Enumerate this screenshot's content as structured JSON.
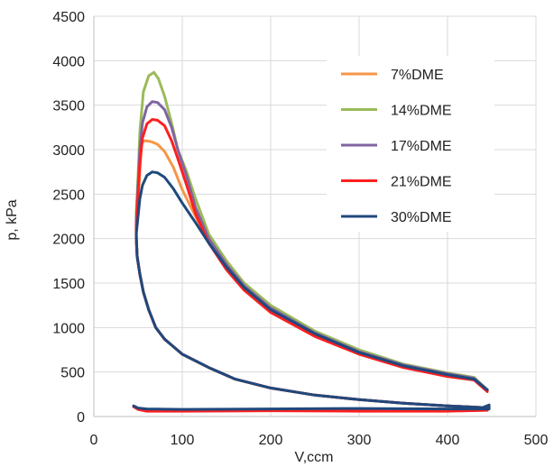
{
  "chart_data": {
    "type": "line",
    "xlabel": "V,ccm",
    "ylabel": "p, kPa",
    "xlim": [
      0,
      500
    ],
    "ylim": [
      0,
      4500
    ],
    "x_ticks": [
      0,
      100,
      200,
      300,
      400,
      500
    ],
    "y_ticks": [
      0,
      500,
      1000,
      1500,
      2000,
      2500,
      3000,
      3500,
      4000,
      4500
    ],
    "grid": true,
    "legend_position": "top-right",
    "series": [
      {
        "name": "7%DME",
        "color": "#f79646",
        "points": [
          [
            445,
            300
          ],
          [
            430,
            420
          ],
          [
            400,
            470
          ],
          [
            350,
            570
          ],
          [
            300,
            720
          ],
          [
            250,
            920
          ],
          [
            200,
            1200
          ],
          [
            170,
            1440
          ],
          [
            150,
            1680
          ],
          [
            130,
            1950
          ],
          [
            115,
            2250
          ],
          [
            100,
            2550
          ],
          [
            90,
            2800
          ],
          [
            80,
            2980
          ],
          [
            72,
            3060
          ],
          [
            65,
            3090
          ],
          [
            58,
            3100
          ],
          [
            54,
            3080
          ],
          [
            52,
            2750
          ],
          [
            50,
            2400
          ],
          [
            48,
            2100
          ],
          [
            49,
            1800
          ],
          [
            52,
            1600
          ],
          [
            56,
            1400
          ],
          [
            62,
            1200
          ],
          [
            70,
            1000
          ],
          [
            80,
            870
          ],
          [
            100,
            700
          ],
          [
            130,
            550
          ],
          [
            160,
            420
          ],
          [
            200,
            320
          ],
          [
            250,
            240
          ],
          [
            300,
            190
          ],
          [
            350,
            150
          ],
          [
            400,
            120
          ],
          [
            440,
            100
          ],
          [
            445,
            120
          ],
          [
            445,
            80
          ],
          [
            400,
            75
          ],
          [
            300,
            75
          ],
          [
            200,
            75
          ],
          [
            100,
            70
          ],
          [
            60,
            75
          ],
          [
            50,
            85
          ],
          [
            45,
            110
          ]
        ]
      },
      {
        "name": "14%DME",
        "color": "#9bbb59",
        "points": [
          [
            445,
            300
          ],
          [
            430,
            440
          ],
          [
            400,
            490
          ],
          [
            350,
            590
          ],
          [
            300,
            750
          ],
          [
            250,
            960
          ],
          [
            200,
            1250
          ],
          [
            170,
            1500
          ],
          [
            150,
            1750
          ],
          [
            130,
            2050
          ],
          [
            115,
            2450
          ],
          [
            105,
            2750
          ],
          [
            95,
            3000
          ],
          [
            88,
            3300
          ],
          [
            80,
            3600
          ],
          [
            73,
            3800
          ],
          [
            68,
            3870
          ],
          [
            62,
            3830
          ],
          [
            56,
            3650
          ],
          [
            52,
            3200
          ],
          [
            50,
            2700
          ],
          [
            48,
            2300
          ],
          [
            48,
            2000
          ],
          [
            49,
            1800
          ],
          [
            52,
            1600
          ],
          [
            56,
            1400
          ],
          [
            62,
            1200
          ],
          [
            70,
            1000
          ],
          [
            80,
            870
          ],
          [
            100,
            700
          ],
          [
            130,
            550
          ],
          [
            160,
            420
          ],
          [
            200,
            320
          ],
          [
            250,
            240
          ],
          [
            300,
            190
          ],
          [
            350,
            150
          ],
          [
            400,
            120
          ],
          [
            440,
            100
          ],
          [
            445,
            120
          ],
          [
            445,
            80
          ],
          [
            400,
            80
          ],
          [
            300,
            80
          ],
          [
            200,
            80
          ],
          [
            100,
            75
          ],
          [
            60,
            80
          ],
          [
            50,
            90
          ],
          [
            45,
            110
          ]
        ]
      },
      {
        "name": "17%DME",
        "color": "#8064a2",
        "points": [
          [
            445,
            300
          ],
          [
            430,
            430
          ],
          [
            400,
            480
          ],
          [
            350,
            580
          ],
          [
            300,
            730
          ],
          [
            250,
            940
          ],
          [
            200,
            1220
          ],
          [
            170,
            1470
          ],
          [
            150,
            1710
          ],
          [
            130,
            2000
          ],
          [
            115,
            2350
          ],
          [
            105,
            2700
          ],
          [
            95,
            3000
          ],
          [
            88,
            3250
          ],
          [
            80,
            3450
          ],
          [
            72,
            3530
          ],
          [
            66,
            3540
          ],
          [
            60,
            3480
          ],
          [
            55,
            3300
          ],
          [
            52,
            3000
          ],
          [
            50,
            2600
          ],
          [
            48,
            2200
          ],
          [
            48,
            2000
          ],
          [
            49,
            1800
          ],
          [
            52,
            1600
          ],
          [
            56,
            1400
          ],
          [
            62,
            1200
          ],
          [
            70,
            1000
          ],
          [
            80,
            870
          ],
          [
            100,
            700
          ],
          [
            130,
            550
          ],
          [
            160,
            420
          ],
          [
            200,
            320
          ],
          [
            250,
            240
          ],
          [
            300,
            190
          ],
          [
            350,
            150
          ],
          [
            400,
            120
          ],
          [
            440,
            100
          ],
          [
            445,
            120
          ],
          [
            445,
            80
          ],
          [
            400,
            80
          ],
          [
            300,
            80
          ],
          [
            200,
            80
          ],
          [
            100,
            75
          ],
          [
            60,
            80
          ],
          [
            50,
            90
          ],
          [
            45,
            110
          ]
        ]
      },
      {
        "name": "21%DME",
        "color": "#ff1f1f",
        "points": [
          [
            445,
            280
          ],
          [
            430,
            410
          ],
          [
            400,
            450
          ],
          [
            350,
            550
          ],
          [
            300,
            700
          ],
          [
            250,
            900
          ],
          [
            200,
            1170
          ],
          [
            170,
            1420
          ],
          [
            150,
            1650
          ],
          [
            130,
            1950
          ],
          [
            115,
            2280
          ],
          [
            105,
            2600
          ],
          [
            95,
            2900
          ],
          [
            88,
            3100
          ],
          [
            80,
            3270
          ],
          [
            72,
            3330
          ],
          [
            66,
            3340
          ],
          [
            60,
            3290
          ],
          [
            55,
            3130
          ],
          [
            52,
            2850
          ],
          [
            50,
            2500
          ],
          [
            48,
            2150
          ],
          [
            48,
            2000
          ],
          [
            49,
            1800
          ],
          [
            52,
            1600
          ],
          [
            56,
            1400
          ],
          [
            62,
            1200
          ],
          [
            70,
            1000
          ],
          [
            80,
            870
          ],
          [
            100,
            700
          ],
          [
            130,
            550
          ],
          [
            160,
            420
          ],
          [
            200,
            320
          ],
          [
            250,
            240
          ],
          [
            300,
            190
          ],
          [
            350,
            150
          ],
          [
            400,
            120
          ],
          [
            440,
            100
          ],
          [
            445,
            110
          ],
          [
            445,
            70
          ],
          [
            400,
            60
          ],
          [
            300,
            60
          ],
          [
            200,
            65
          ],
          [
            100,
            60
          ],
          [
            60,
            60
          ],
          [
            50,
            80
          ],
          [
            45,
            110
          ]
        ]
      },
      {
        "name": "30%DME",
        "color": "#1f497d",
        "points": [
          [
            445,
            300
          ],
          [
            430,
            420
          ],
          [
            400,
            470
          ],
          [
            350,
            570
          ],
          [
            300,
            720
          ],
          [
            250,
            930
          ],
          [
            200,
            1200
          ],
          [
            170,
            1450
          ],
          [
            150,
            1680
          ],
          [
            130,
            1950
          ],
          [
            115,
            2180
          ],
          [
            100,
            2400
          ],
          [
            90,
            2560
          ],
          [
            80,
            2690
          ],
          [
            72,
            2740
          ],
          [
            66,
            2750
          ],
          [
            60,
            2710
          ],
          [
            55,
            2600
          ],
          [
            52,
            2450
          ],
          [
            50,
            2250
          ],
          [
            48,
            2050
          ],
          [
            49,
            1800
          ],
          [
            52,
            1600
          ],
          [
            56,
            1400
          ],
          [
            62,
            1200
          ],
          [
            70,
            1000
          ],
          [
            80,
            870
          ],
          [
            100,
            700
          ],
          [
            130,
            550
          ],
          [
            160,
            420
          ],
          [
            200,
            320
          ],
          [
            250,
            240
          ],
          [
            300,
            190
          ],
          [
            350,
            150
          ],
          [
            400,
            120
          ],
          [
            440,
            100
          ],
          [
            447,
            130
          ],
          [
            447,
            85
          ],
          [
            400,
            85
          ],
          [
            300,
            90
          ],
          [
            200,
            85
          ],
          [
            100,
            80
          ],
          [
            60,
            85
          ],
          [
            50,
            95
          ],
          [
            45,
            120
          ]
        ]
      }
    ]
  }
}
